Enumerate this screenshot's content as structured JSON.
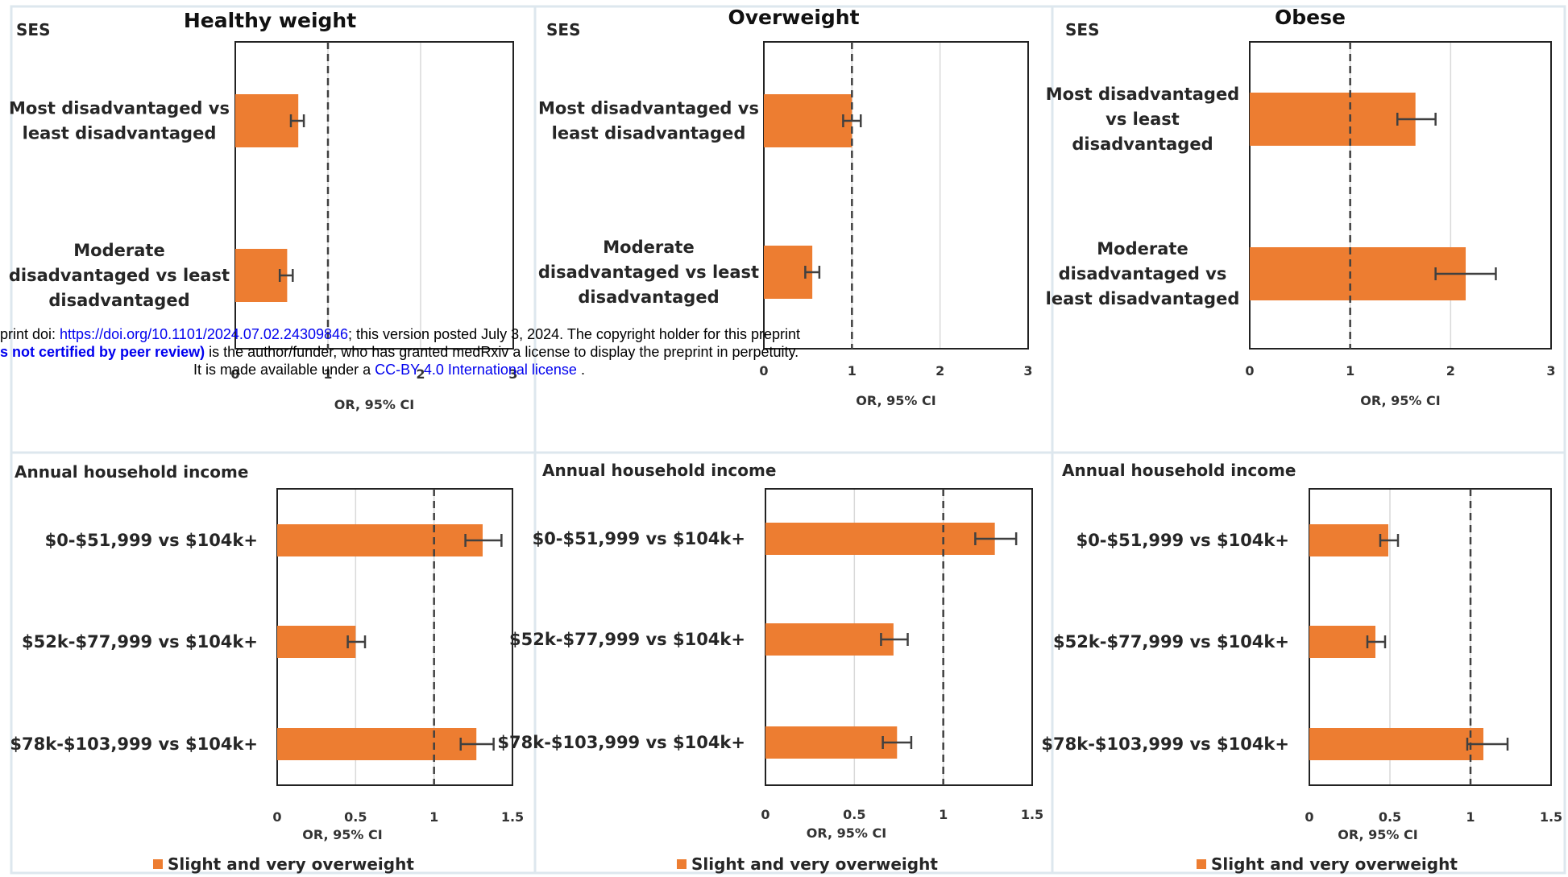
{
  "chart_data": [
    {
      "type": "bar",
      "orientation": "horizontal",
      "title": "Healthy weight",
      "group_label": "SES",
      "categories": [
        "Most disadvantaged vs least disadvantaged",
        "Moderate disadvantaged vs least disadvantaged"
      ],
      "series": [
        {
          "values": [
            0.68,
            0.56
          ],
          "ci_low": [
            0.6,
            0.48
          ],
          "ci_high": [
            0.74,
            0.62
          ]
        }
      ],
      "xlabel": "OR, 95% CI",
      "xlim": [
        0,
        3
      ],
      "xticks": [
        0,
        1,
        2,
        3
      ],
      "reference_line": 1,
      "grid": true
    },
    {
      "type": "bar",
      "orientation": "horizontal",
      "title": "Overweight",
      "group_label": "SES",
      "categories": [
        "Most disadvantaged vs least disadvantaged",
        "Moderate disadvantaged vs least disadvantaged"
      ],
      "series": [
        {
          "values": [
            1.0,
            0.55
          ],
          "ci_low": [
            0.9,
            0.47
          ],
          "ci_high": [
            1.1,
            0.63
          ]
        }
      ],
      "xlabel": "OR, 95% CI",
      "xlim": [
        0,
        3
      ],
      "xticks": [
        0,
        1,
        2,
        3
      ],
      "reference_line": 1,
      "grid": true
    },
    {
      "type": "bar",
      "orientation": "horizontal",
      "title": "Obese",
      "group_label": "SES",
      "categories": [
        "Most disadvantaged vs least disadvantaged",
        "Moderate disadvantaged vs least disadvantaged"
      ],
      "series": [
        {
          "values": [
            1.65,
            2.15
          ],
          "ci_low": [
            1.47,
            1.85
          ],
          "ci_high": [
            1.85,
            2.45
          ]
        }
      ],
      "xlabel": "OR, 95% CI",
      "xlim": [
        0,
        3
      ],
      "xticks": [
        0,
        1,
        2,
        3
      ],
      "reference_line": 1,
      "grid": true
    },
    {
      "type": "bar",
      "orientation": "horizontal",
      "title": "",
      "group_label": "Annual household income",
      "categories": [
        "$0-$51,999  vs $104k+",
        "$52k-$77,999  vs $104k+",
        "$78k-$103,999  vs $104k+"
      ],
      "series": [
        {
          "name": "Slight and very overweight",
          "values": [
            1.31,
            0.5,
            1.27
          ],
          "ci_low": [
            1.2,
            0.45,
            1.17
          ],
          "ci_high": [
            1.43,
            0.56,
            1.38
          ]
        }
      ],
      "xlabel": "OR, 95% CI",
      "xlim": [
        0,
        1.5
      ],
      "xticks": [
        0,
        0.5,
        1,
        1.5
      ],
      "reference_line": 1,
      "grid": true,
      "legend": "bottom"
    },
    {
      "type": "bar",
      "orientation": "horizontal",
      "title": "",
      "group_label": "Annual household income",
      "categories": [
        "$0-$51,999  vs $104k+",
        "$52k-$77,999  vs $104k+",
        "$78k-$103,999  vs $104k+"
      ],
      "series": [
        {
          "name": "Slight and very overweight",
          "values": [
            1.29,
            0.72,
            0.74
          ],
          "ci_low": [
            1.18,
            0.65,
            0.66
          ],
          "ci_high": [
            1.41,
            0.8,
            0.82
          ]
        }
      ],
      "xlabel": "OR, 95% CI",
      "xlim": [
        0,
        1.5
      ],
      "xticks": [
        0,
        0.5,
        1,
        1.5
      ],
      "reference_line": 1,
      "grid": true,
      "legend": "bottom"
    },
    {
      "type": "bar",
      "orientation": "horizontal",
      "title": "",
      "group_label": "Annual household income",
      "categories": [
        "$0-$51,999  vs $104k+",
        "$52k-$77,999  vs $104k+",
        "$78k-$103,999  vs $104k+"
      ],
      "series": [
        {
          "name": "Slight and very overweight",
          "values": [
            0.49,
            0.41,
            1.08
          ],
          "ci_low": [
            0.44,
            0.36,
            0.98
          ],
          "ci_high": [
            0.55,
            0.47,
            1.23
          ]
        }
      ],
      "xlabel": "OR, 95% CI",
      "xlim": [
        0,
        1.5
      ],
      "xticks": [
        0,
        0.5,
        1,
        1.5
      ],
      "reference_line": 1,
      "grid": true,
      "legend": "bottom"
    }
  ],
  "colors": {
    "bar": "#ed7d31",
    "error": "#404040",
    "reference": "#404040",
    "grid": "#d9d9d9",
    "frame": "#dde7ee"
  },
  "overlay": {
    "line1_a": "print doi: ",
    "line1_link": "https://doi.org/10.1101/2024.07.02.24309846",
    "line1_b": "; this version posted July 3, 2024. The copyright holder for this preprint",
    "line2_bold": "s not certified by peer review)",
    "line2_b": " is the author/funder, who has granted medRxiv a license to display the preprint in perpetuity.",
    "line3_a": "It is made available under a ",
    "line3_link": "CC-BY 4.0 International license",
    "line3_b": " ."
  }
}
